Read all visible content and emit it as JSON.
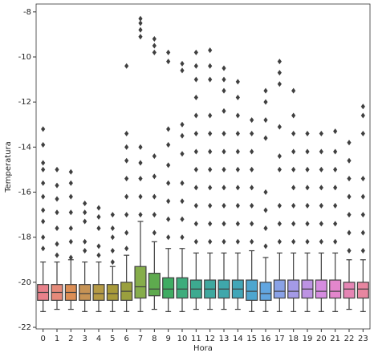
{
  "chart_data": {
    "type": "box",
    "x_label": "Hora",
    "y_label": "Temperatura",
    "categories": [
      "0",
      "1",
      "2",
      "3",
      "4",
      "5",
      "6",
      "7",
      "8",
      "9",
      "10",
      "11",
      "12",
      "13",
      "14",
      "15",
      "16",
      "17",
      "18",
      "19",
      "20",
      "21",
      "22",
      "23"
    ],
    "colors": [
      "#e8818a",
      "#e58a7a",
      "#dc8e55",
      "#c69355",
      "#b59a45",
      "#a89a3a",
      "#9aa03e",
      "#86ad4b",
      "#5eaa4e",
      "#3fac63",
      "#3eac7c",
      "#3daa90",
      "#3ea89f",
      "#3fa7ab",
      "#41a6b8",
      "#4ea6cf",
      "#62a6e0",
      "#8aa2e6",
      "#a49ae6",
      "#bd93e3",
      "#d68ce0",
      "#e386cc",
      "#e585b4",
      "#e786a0"
    ],
    "boxes": [
      {
        "whislo": -21.3,
        "q1": -20.8,
        "med": -20.45,
        "q3": -20.1,
        "whishi": -19.1,
        "fliers": [
          -18.5,
          -18.0,
          -17.3,
          -16.8,
          -16.2,
          -15.6,
          -15.0,
          -14.7,
          -13.9,
          -13.2
        ]
      },
      {
        "whislo": -21.2,
        "q1": -20.8,
        "med": -20.45,
        "q3": -20.1,
        "whishi": -19.1,
        "fliers": [
          -18.8,
          -18.3,
          -17.6,
          -16.9,
          -16.3,
          -15.7,
          -15.0
        ]
      },
      {
        "whislo": -21.2,
        "q1": -20.8,
        "med": -20.45,
        "q3": -20.1,
        "whishi": -19.0,
        "fliers": [
          -18.9,
          -18.2,
          -17.6,
          -16.9,
          -16.2,
          -15.6,
          -15.1
        ]
      },
      {
        "whislo": -21.3,
        "q1": -20.8,
        "med": -20.5,
        "q3": -20.1,
        "whishi": -19.1,
        "fliers": [
          -18.6,
          -18.2,
          -17.3,
          -16.9,
          -16.5
        ]
      },
      {
        "whislo": -21.3,
        "q1": -20.8,
        "med": -20.5,
        "q3": -20.1,
        "whishi": -19.1,
        "fliers": [
          -18.8,
          -18.4,
          -17.6,
          -17.1,
          -16.7
        ]
      },
      {
        "whislo": -21.3,
        "q1": -20.8,
        "med": -20.5,
        "q3": -20.1,
        "whishi": -19.3,
        "fliers": [
          -19.1,
          -18.6,
          -18.0,
          -17.6,
          -17.0
        ]
      },
      {
        "whislo": -21.3,
        "q1": -20.8,
        "med": -20.4,
        "q3": -20.0,
        "whishi": -18.8,
        "fliers": [
          -18.5,
          -17.8,
          -17.0,
          -16.2,
          -15.4,
          -14.6,
          -14.0,
          -13.4,
          -10.4
        ]
      },
      {
        "whislo": -21.3,
        "q1": -20.7,
        "med": -20.2,
        "q3": -19.3,
        "whishi": -17.3,
        "fliers": [
          -17.0,
          -16.2,
          -15.4,
          -14.7,
          -14.0,
          -9.1,
          -8.8,
          -8.5,
          -8.3
        ]
      },
      {
        "whislo": -21.2,
        "q1": -20.6,
        "med": -20.3,
        "q3": -19.6,
        "whishi": -18.2,
        "fliers": [
          -17.8,
          -17.0,
          -16.2,
          -15.3,
          -14.4,
          -9.8,
          -9.5,
          -9.2
        ]
      },
      {
        "whislo": -21.3,
        "q1": -20.7,
        "med": -20.3,
        "q3": -19.8,
        "whishi": -18.5,
        "fliers": [
          -18.0,
          -17.2,
          -16.4,
          -15.6,
          -14.8,
          -13.9,
          -13.2,
          -10.2,
          -9.8
        ]
      },
      {
        "whislo": -21.3,
        "q1": -20.7,
        "med": -20.3,
        "q3": -19.8,
        "whishi": -18.5,
        "fliers": [
          -18.0,
          -17.2,
          -16.4,
          -15.6,
          -14.3,
          -13.5,
          -13.0,
          -10.6,
          -10.3
        ]
      },
      {
        "whislo": -21.2,
        "q1": -20.7,
        "med": -20.3,
        "q3": -19.9,
        "whishi": -18.7,
        "fliers": [
          -18.2,
          -17.4,
          -16.6,
          -15.8,
          -15.0,
          -14.2,
          -13.4,
          -12.6,
          -11.8,
          -11.0,
          -10.4,
          -9.8
        ]
      },
      {
        "whislo": -21.2,
        "q1": -20.7,
        "med": -20.3,
        "q3": -19.9,
        "whishi": -18.7,
        "fliers": [
          -18.2,
          -17.4,
          -16.6,
          -15.8,
          -15.0,
          -14.2,
          -13.4,
          -12.6,
          -11.0,
          -10.4,
          -9.7
        ]
      },
      {
        "whislo": -21.2,
        "q1": -20.7,
        "med": -20.3,
        "q3": -19.9,
        "whishi": -18.7,
        "fliers": [
          -18.2,
          -17.4,
          -16.6,
          -15.8,
          -15.0,
          -14.2,
          -13.4,
          -12.4,
          -11.5,
          -11.0,
          -10.5
        ]
      },
      {
        "whislo": -21.2,
        "q1": -20.7,
        "med": -20.3,
        "q3": -19.9,
        "whishi": -18.7,
        "fliers": [
          -18.2,
          -17.4,
          -16.6,
          -15.8,
          -15.0,
          -14.2,
          -13.4,
          -12.6,
          -11.8,
          -11.1
        ]
      },
      {
        "whislo": -21.3,
        "q1": -20.8,
        "med": -20.4,
        "q3": -19.9,
        "whishi": -18.6,
        "fliers": [
          -18.2,
          -17.4,
          -16.6,
          -15.8,
          -15.0,
          -14.2,
          -13.4,
          -12.8
        ]
      },
      {
        "whislo": -21.3,
        "q1": -20.8,
        "med": -20.5,
        "q3": -20.0,
        "whishi": -18.9,
        "fliers": [
          -18.4,
          -17.6,
          -16.8,
          -16.0,
          -13.6,
          -12.8,
          -12.0,
          -11.5
        ]
      },
      {
        "whislo": -21.3,
        "q1": -20.7,
        "med": -20.4,
        "q3": -19.9,
        "whishi": -18.7,
        "fliers": [
          -18.2,
          -17.4,
          -16.6,
          -15.0,
          -14.4,
          -13.1,
          -11.2,
          -10.7,
          -10.2
        ]
      },
      {
        "whislo": -21.3,
        "q1": -20.7,
        "med": -20.4,
        "q3": -19.9,
        "whishi": -18.7,
        "fliers": [
          -18.2,
          -17.4,
          -16.6,
          -15.8,
          -15.0,
          -14.2,
          -13.4,
          -12.6,
          -11.5
        ]
      },
      {
        "whislo": -21.3,
        "q1": -20.7,
        "med": -20.3,
        "q3": -19.9,
        "whishi": -18.7,
        "fliers": [
          -18.2,
          -17.4,
          -16.6,
          -15.8,
          -15.0,
          -14.2,
          -13.4
        ]
      },
      {
        "whislo": -21.3,
        "q1": -20.7,
        "med": -20.4,
        "q3": -19.9,
        "whishi": -18.7,
        "fliers": [
          -18.2,
          -17.4,
          -16.6,
          -15.8,
          -15.0,
          -14.2,
          -13.4
        ]
      },
      {
        "whislo": -21.3,
        "q1": -20.7,
        "med": -20.4,
        "q3": -19.9,
        "whishi": -18.7,
        "fliers": [
          -18.2,
          -17.4,
          -16.6,
          -15.8,
          -15.0,
          -14.2,
          -13.3
        ]
      },
      {
        "whislo": -21.2,
        "q1": -20.7,
        "med": -20.3,
        "q3": -20.0,
        "whishi": -19.0,
        "fliers": [
          -18.6,
          -17.8,
          -17.0,
          -16.2,
          -15.4,
          -14.6,
          -13.8
        ]
      },
      {
        "whislo": -21.3,
        "q1": -20.7,
        "med": -20.3,
        "q3": -20.0,
        "whishi": -19.0,
        "fliers": [
          -18.6,
          -17.8,
          -17.0,
          -16.2,
          -15.4,
          -13.4,
          -12.6,
          -12.2
        ]
      }
    ],
    "ylim": [
      -22.07,
      -7.65
    ],
    "yticks": [
      -22,
      -20,
      -18,
      -16,
      -14,
      -12,
      -10,
      -8
    ]
  }
}
